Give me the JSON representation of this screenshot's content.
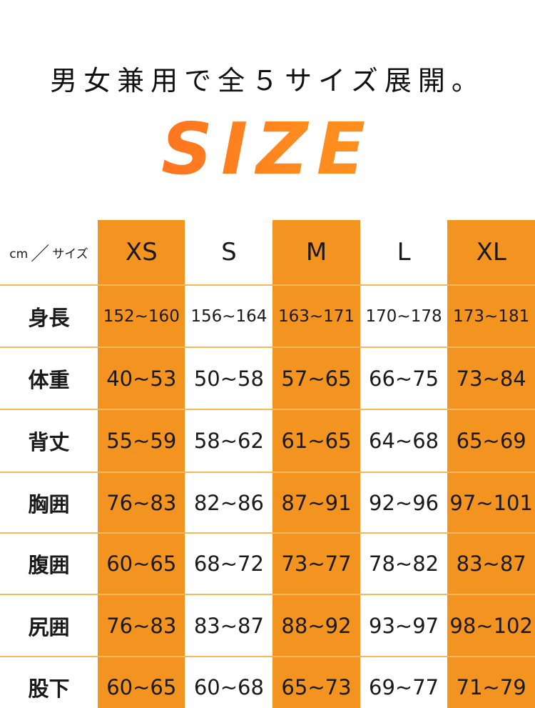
{
  "headline": "男女兼用で全５サイズ展開。",
  "title": "SIZE",
  "accent_color": "#F39320",
  "table": {
    "corner": {
      "unit": "cm",
      "separator": "／",
      "label": "サイズ"
    },
    "sizes": [
      "XS",
      "S",
      "M",
      "L",
      "XL"
    ],
    "highlighted_sizes": [
      "XS",
      "M",
      "XL"
    ],
    "rows": [
      {
        "label": "身長",
        "values": [
          "152~160",
          "156~164",
          "163~171",
          "170~178",
          "173~181"
        ]
      },
      {
        "label": "体重",
        "values": [
          "40~53",
          "50~58",
          "57~65",
          "66~75",
          "73~84"
        ]
      },
      {
        "label": "背丈",
        "values": [
          "55~59",
          "58~62",
          "61~65",
          "64~68",
          "65~69"
        ]
      },
      {
        "label": "胸囲",
        "values": [
          "76~83",
          "82~86",
          "87~91",
          "92~96",
          "97~101"
        ]
      },
      {
        "label": "腹囲",
        "values": [
          "60~65",
          "68~72",
          "73~77",
          "78~82",
          "83~87"
        ]
      },
      {
        "label": "尻囲",
        "values": [
          "76~83",
          "83~87",
          "88~92",
          "93~97",
          "98~102"
        ]
      },
      {
        "label": "股下",
        "values": [
          "60~65",
          "60~68",
          "65~73",
          "69~77",
          "71~79"
        ]
      }
    ]
  }
}
